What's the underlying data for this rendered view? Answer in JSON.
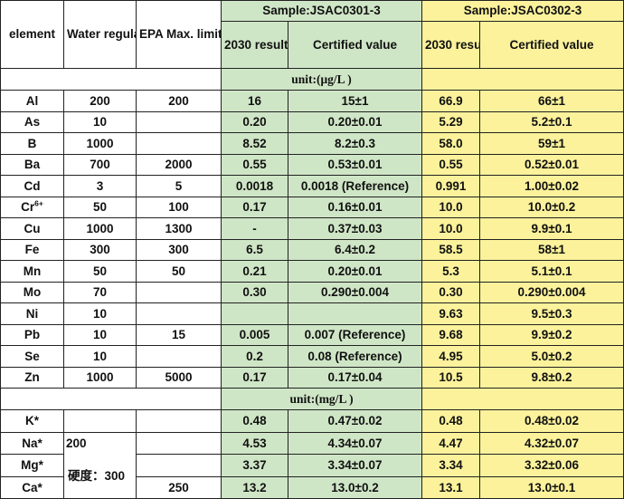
{
  "header": {
    "element": "element",
    "water_regulation": "Water regulation",
    "epa_limit": "EPA Max. limit for Drinking water",
    "sample_a": "Sample:JSAC0301-3",
    "sample_b": "Sample:JSAC0302-3",
    "results_2030": "2030 results",
    "certified_value": "Certified value"
  },
  "units": {
    "ug_per_l": "unit:(μg/L )",
    "mg_per_l": "unit:(mg/L )"
  },
  "trace_rows": [
    {
      "element": "Al",
      "water_regulation": "200",
      "epa": "200",
      "a_result": "16",
      "a_certified": "15±1",
      "b_result": "66.9",
      "b_certified": "66±1"
    },
    {
      "element": "As",
      "water_regulation": "10",
      "epa": "",
      "a_result": "0.20",
      "a_certified": "0.20±0.01",
      "b_result": "5.29",
      "b_certified": "5.2±0.1"
    },
    {
      "element": "B",
      "water_regulation": "1000",
      "epa": "",
      "a_result": "8.52",
      "a_certified": "8.2±0.3",
      "b_result": "58.0",
      "b_certified": "59±1"
    },
    {
      "element": "Ba",
      "water_regulation": "700",
      "epa": "2000",
      "a_result": "0.55",
      "a_certified": "0.53±0.01",
      "b_result": "0.55",
      "b_certified": "0.52±0.01"
    },
    {
      "element": "Cd",
      "water_regulation": "3",
      "epa": "5",
      "a_result": "0.0018",
      "a_certified": "0.0018 (Reference)",
      "b_result": "0.991",
      "b_certified": "1.00±0.02"
    },
    {
      "element": "Cr",
      "element_sup": "6+",
      "water_regulation": "50",
      "epa": "100",
      "a_result": "0.17",
      "a_certified": "0.16±0.01",
      "b_result": "10.0",
      "b_certified": "10.0±0.2"
    },
    {
      "element": "Cu",
      "water_regulation": "1000",
      "epa": "1300",
      "a_result": "-",
      "a_certified": "0.37±0.03",
      "b_result": "10.0",
      "b_certified": "9.9±0.1"
    },
    {
      "element": "Fe",
      "water_regulation": "300",
      "epa": "300",
      "a_result": "6.5",
      "a_certified": "6.4±0.2",
      "b_result": "58.5",
      "b_certified": "58±1"
    },
    {
      "element": "Mn",
      "water_regulation": "50",
      "epa": "50",
      "a_result": "0.21",
      "a_certified": "0.20±0.01",
      "b_result": "5.3",
      "b_certified": "5.1±0.1"
    },
    {
      "element": "Mo",
      "water_regulation": "70",
      "epa": "",
      "a_result": "0.30",
      "a_certified": "0.290±0.004",
      "b_result": "0.30",
      "b_certified": "0.290±0.004"
    },
    {
      "element": "Ni",
      "water_regulation": "10",
      "epa": "",
      "a_result": "",
      "a_certified": "",
      "b_result": "9.63",
      "b_certified": "9.5±0.3"
    },
    {
      "element": "Pb",
      "water_regulation": "10",
      "epa": "15",
      "a_result": "0.005",
      "a_certified": "0.007 (Reference)",
      "b_result": "9.68",
      "b_certified": "9.9±0.2"
    },
    {
      "element": "Se",
      "water_regulation": "10",
      "epa": "",
      "a_result": "0.2",
      "a_certified": "0.08 (Reference)",
      "b_result": "4.95",
      "b_certified": "5.0±0.2"
    },
    {
      "element": "Zn",
      "water_regulation": "1000",
      "epa": "5000",
      "a_result": "0.17",
      "a_certified": "0.17±0.04",
      "b_result": "10.5",
      "b_certified": "9.8±0.2"
    }
  ],
  "major_rows": [
    {
      "element": "K*",
      "epa": "",
      "a_result": "0.48",
      "a_certified": "0.47±0.02",
      "b_result": "0.48",
      "b_certified": "0.48±0.02"
    },
    {
      "element": "Na*",
      "epa": "",
      "a_result": "4.53",
      "a_certified": "4.34±0.07",
      "b_result": "4.47",
      "b_certified": "4.32±0.07"
    },
    {
      "element": "Mg*",
      "epa": "",
      "a_result": "3.37",
      "a_certified": "3.34±0.07",
      "b_result": "3.34",
      "b_certified": "3.32±0.06"
    },
    {
      "element": "Ca*",
      "epa": "250",
      "a_result": "13.2",
      "a_certified": "13.0±0.2",
      "b_result": "13.1",
      "b_certified": "13.0±0.1"
    }
  ],
  "major_regulation": {
    "na": "200",
    "hardness": "硬度：300"
  },
  "colors": {
    "sample_a_fill": "#cfe6c6",
    "sample_b_fill": "#fbf29b",
    "border": "#222222"
  }
}
